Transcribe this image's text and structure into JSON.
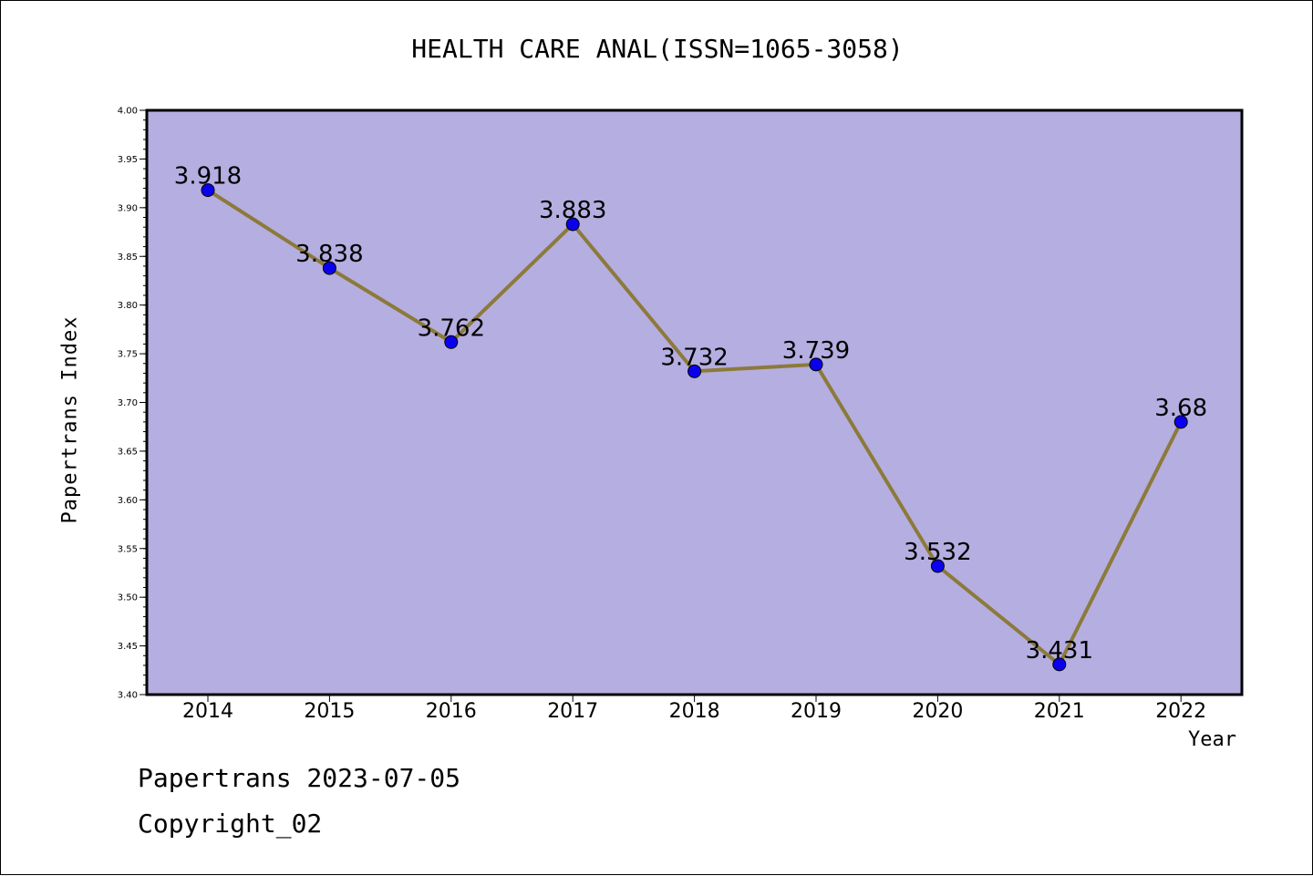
{
  "chart_data": {
    "type": "line",
    "title": "HEALTH CARE ANAL(ISSN=1065-3058)",
    "xlabel": "Year",
    "ylabel": "Papertrans Index",
    "categories": [
      "2014",
      "2015",
      "2016",
      "2017",
      "2018",
      "2019",
      "2020",
      "2021",
      "2022"
    ],
    "series": [
      {
        "values": [
          3.918,
          3.838,
          3.762,
          3.883,
          3.732,
          3.739,
          3.532,
          3.431,
          3.68
        ],
        "labels": [
          "3.918",
          "3.838",
          "3.762",
          "3.883",
          "3.732",
          "3.739",
          "3.532",
          "3.431",
          "3.68"
        ]
      }
    ],
    "ylim": [
      3.4,
      4.0
    ],
    "yticks": [
      "3.40",
      "3.45",
      "3.50",
      "3.55",
      "3.60",
      "3.65",
      "3.70",
      "3.75",
      "3.80",
      "3.85",
      "3.90",
      "3.95",
      "4.00"
    ],
    "grid": false,
    "colors": {
      "plot_background": "#b5aee1",
      "line": "#8b7a3a",
      "marker": "#0a00ee"
    }
  },
  "footer": {
    "line1": "Papertrans 2023-07-05",
    "line2": "Copyright_02"
  }
}
